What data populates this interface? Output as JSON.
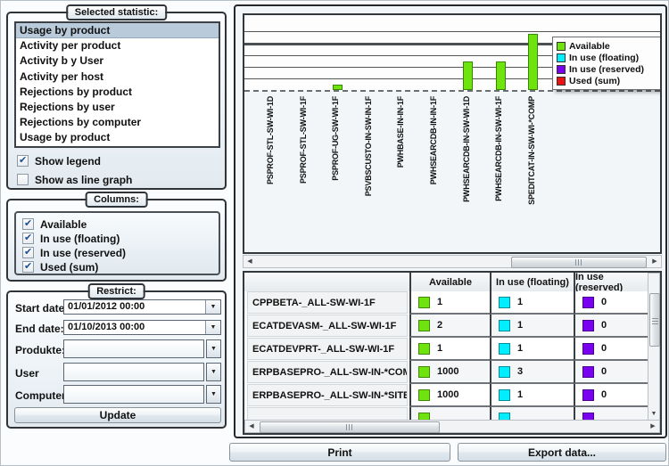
{
  "left_panel": {
    "statistic_group": {
      "title": "Selected statistic:",
      "items": [
        "Usage by product",
        "Activity per product",
        "Activity b y User",
        "Activity per host",
        "Rejections by product",
        "Rejections by user",
        "Rejections by computer",
        "Usage by product"
      ],
      "selected_index": 0,
      "show_legend": {
        "label": "Show legend",
        "checked": true
      },
      "show_line_graph": {
        "label": "Show as line graph",
        "checked": false
      }
    },
    "columns_group": {
      "title": "Columns:",
      "options": [
        {
          "label": "Available",
          "checked": true
        },
        {
          "label": "In use (floating)",
          "checked": true
        },
        {
          "label": "In use (reserved)",
          "checked": true
        },
        {
          "label": "Used (sum)",
          "checked": true
        }
      ]
    },
    "restrict_group": {
      "title": "Restrict:",
      "fields": [
        {
          "label": "Start date:",
          "value": "01/01/2012 00:00"
        },
        {
          "label": "End date:",
          "value": "01/10/2013 00:00"
        },
        {
          "label": "Produkte:",
          "value": ""
        },
        {
          "label": "User",
          "value": ""
        },
        {
          "label": "Computer:",
          "value": ""
        }
      ],
      "update_label": "Update"
    }
  },
  "chart_data": {
    "type": "bar",
    "title": "",
    "xlabel": "",
    "ylabel": "",
    "categories": [
      "PSPROF-STL-SW-WI-1D",
      "PSPROF-STL-SW-WI-1F",
      "PSPROF-UG-SW-WI-1F",
      "PSVBSCUSTO-IN-SW-IN-1F",
      "PWHBASE-IN-IN-1F",
      "PWHSEARCDB-IN-IN-1F",
      "PWHSEARCDB-IN-SW-WI-1D",
      "PWHSEARCDB-IN-SW-WI-1F",
      "SPEDITCAT-IN-SW-WI-*COMP"
    ],
    "series": [
      {
        "name": "Available",
        "color": "#6fe30e",
        "values": [
          0,
          0,
          100,
          0,
          0,
          0,
          500,
          500,
          1000
        ]
      },
      {
        "name": "In use (floating)",
        "color": "#00eeff",
        "values": [
          0,
          0,
          0,
          0,
          0,
          0,
          0,
          0,
          0
        ]
      },
      {
        "name": "In use (reserved)",
        "color": "#7a00f0",
        "values": [
          0,
          0,
          0,
          0,
          0,
          0,
          0,
          0,
          0
        ]
      },
      {
        "name": "Used (sum)",
        "color": "#ee1111",
        "values": [
          0,
          0,
          0,
          0,
          0,
          0,
          0,
          0,
          0
        ]
      }
    ],
    "legend": [
      {
        "label": "Available",
        "color": "#6fe30e"
      },
      {
        "label": "In use (floating)",
        "color": "#00eeff"
      },
      {
        "label": "In use (reserved)",
        "color": "#7a00f0"
      },
      {
        "label": "Used (sum)",
        "color": "#ee1111"
      }
    ],
    "legend_position": "top-right",
    "grid": true,
    "y_axis_ticks_visible": false,
    "ylim": [
      0,
      1300
    ],
    "gridline_step_estimate": 200
  },
  "table": {
    "columns": [
      "",
      "Available",
      "In use (floating)",
      "In use (reserved)"
    ],
    "rows": [
      {
        "name": "CPPBETA-_ALL-SW-WI-1F",
        "available": 1,
        "floating": 1,
        "reserved": 0
      },
      {
        "name": "ECATDEVASM-_ALL-SW-WI-1F",
        "available": 2,
        "floating": 1,
        "reserved": 0
      },
      {
        "name": "ECATDEVPRT-_ALL-SW-WI-1F",
        "available": 1,
        "floating": 1,
        "reserved": 0
      },
      {
        "name": "ERPBASEPRO-_ALL-SW-IN-*COMP",
        "available": 1000,
        "floating": 3,
        "reserved": 0
      },
      {
        "name": "ERPBASEPRO-_ALL-SW-IN-*SITE",
        "available": 1000,
        "floating": 1,
        "reserved": 0
      }
    ],
    "partial_row_visible": true
  },
  "buttons": {
    "print": "Print",
    "export": "Export data..."
  },
  "colors": {
    "available": "#6fe30e",
    "in_use_floating": "#00eeff",
    "in_use_reserved": "#7a00f0",
    "used_sum": "#ee1111",
    "selection_bg": "#b9cbdb"
  }
}
